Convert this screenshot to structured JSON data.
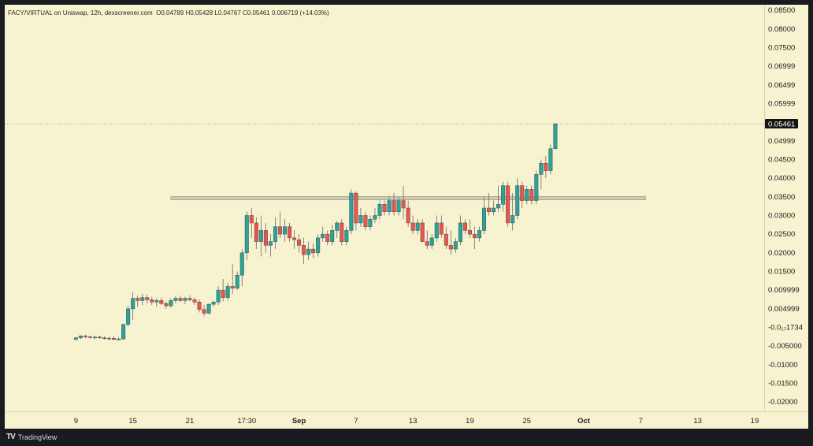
{
  "legend": {
    "pair": "FACY/VIRTUAL on Uniswap, 12h, dexscreener.com",
    "open": "O0.04789",
    "high": "H0.05428",
    "low": "L0.04767",
    "close": "C0.05461",
    "change": "0.006719 (+14.03%)"
  },
  "brand": {
    "logo": "TV",
    "name": "TradingView"
  },
  "colors": {
    "up": "#26a69a",
    "down": "#ef5350",
    "bg": "#f7f2cf",
    "zone": "#c9c6b4"
  },
  "chart_data": {
    "type": "candlestick",
    "title": "FACY/VIRTUAL on Uniswap, 12h, dexscreener.com",
    "y_ticks": [
      "0.08500",
      "0.08000",
      "0.07500",
      "0.06999",
      "0.06499",
      "0.05999",
      "0.04999",
      "0.04500",
      "0.04000",
      "0.03500",
      "0.03000",
      "0.02500",
      "0.02000",
      "0.01500",
      "0.009999",
      "0.004999",
      "-0.0₁₇1734",
      "-0.005000",
      "-0.01000",
      "-0.01500",
      "-0.02000"
    ],
    "y_tick_values": [
      0.085,
      0.08,
      0.075,
      0.06999,
      0.06499,
      0.05999,
      0.04999,
      0.045,
      0.04,
      0.035,
      0.03,
      0.025,
      0.02,
      0.015,
      0.009999,
      0.004999,
      0.0,
      -0.005,
      -0.01,
      -0.015,
      -0.02
    ],
    "ylim": [
      -0.0225,
      0.0865
    ],
    "x_ticks": [
      {
        "label": "9",
        "day": 0
      },
      {
        "label": "15",
        "day": 6
      },
      {
        "label": "21",
        "day": 12
      },
      {
        "label": "17:30",
        "day": 18
      },
      {
        "label": "Sep",
        "day": 23.5
      },
      {
        "label": "7",
        "day": 29.5
      },
      {
        "label": "13",
        "day": 35.5
      },
      {
        "label": "19",
        "day": 41.5
      },
      {
        "label": "25",
        "day": 47.5
      },
      {
        "label": "Oct",
        "day": 53.5
      },
      {
        "label": "7",
        "day": 59.5
      },
      {
        "label": "13",
        "day": 65.5
      },
      {
        "label": "19",
        "day": 71.5
      }
    ],
    "xlim_days": [
      -7.5,
      72.5
    ],
    "last_price": "0.05461",
    "last_price_value": 0.05461,
    "resistance_zone": {
      "from_day": 10,
      "to_day": 60,
      "low": 0.0342,
      "high": 0.0351
    },
    "candles": [
      [
        0.0,
        -0.0032,
        -0.0025,
        -0.0035,
        -0.0028
      ],
      [
        0.5,
        -0.0028,
        -0.0021,
        -0.0032,
        -0.0023
      ],
      [
        1.0,
        -0.0023,
        -0.0019,
        -0.0029,
        -0.0025
      ],
      [
        1.5,
        -0.0025,
        -0.0022,
        -0.003,
        -0.0027
      ],
      [
        2.0,
        -0.0027,
        -0.0023,
        -0.0031,
        -0.0026
      ],
      [
        2.5,
        -0.0026,
        -0.0022,
        -0.0031,
        -0.0028
      ],
      [
        3.0,
        -0.0028,
        -0.0024,
        -0.0033,
        -0.003
      ],
      [
        3.5,
        -0.003,
        -0.0025,
        -0.0034,
        -0.0029
      ],
      [
        4.0,
        -0.0029,
        -0.0024,
        -0.0035,
        -0.0032
      ],
      [
        4.5,
        -0.0032,
        -0.0026,
        -0.0035,
        -0.0031
      ],
      [
        5.0,
        -0.0031,
        0.001,
        -0.0033,
        0.0008
      ],
      [
        5.5,
        0.0008,
        0.0058,
        0.0002,
        0.005
      ],
      [
        6.0,
        0.005,
        0.0095,
        0.002,
        0.0078
      ],
      [
        6.5,
        0.0078,
        0.0085,
        0.0055,
        0.0072
      ],
      [
        7.0,
        0.0072,
        0.009,
        0.006,
        0.008
      ],
      [
        7.5,
        0.008,
        0.0088,
        0.0065,
        0.0074
      ],
      [
        8.0,
        0.0074,
        0.0082,
        0.006,
        0.0068
      ],
      [
        8.5,
        0.0068,
        0.0078,
        0.0055,
        0.0072
      ],
      [
        9.0,
        0.0072,
        0.008,
        0.006,
        0.0064
      ],
      [
        9.5,
        0.0064,
        0.007,
        0.005,
        0.0058
      ],
      [
        10.0,
        0.0058,
        0.0078,
        0.0052,
        0.0072
      ],
      [
        10.5,
        0.0072,
        0.0085,
        0.0065,
        0.0078
      ],
      [
        11.0,
        0.0078,
        0.0085,
        0.0068,
        0.0072
      ],
      [
        11.5,
        0.0072,
        0.0082,
        0.0062,
        0.0078
      ],
      [
        12.0,
        0.0078,
        0.0086,
        0.007,
        0.0074
      ],
      [
        12.5,
        0.0074,
        0.008,
        0.006,
        0.0068
      ],
      [
        13.0,
        0.0068,
        0.0075,
        0.004,
        0.0048
      ],
      [
        13.5,
        0.0048,
        0.006,
        0.003,
        0.0038
      ],
      [
        14.0,
        0.0038,
        0.0065,
        0.0035,
        0.0062
      ],
      [
        14.5,
        0.0062,
        0.0072,
        0.0055,
        0.0068
      ],
      [
        15.0,
        0.0068,
        0.011,
        0.006,
        0.01
      ],
      [
        15.5,
        0.01,
        0.013,
        0.007,
        0.008
      ],
      [
        16.0,
        0.008,
        0.012,
        0.0072,
        0.011
      ],
      [
        16.5,
        0.011,
        0.017,
        0.009,
        0.0105
      ],
      [
        17.0,
        0.0105,
        0.015,
        0.01,
        0.014
      ],
      [
        17.5,
        0.014,
        0.021,
        0.011,
        0.02
      ],
      [
        18.0,
        0.02,
        0.031,
        0.018,
        0.03
      ],
      [
        18.5,
        0.03,
        0.032,
        0.024,
        0.028
      ],
      [
        19.0,
        0.028,
        0.0295,
        0.021,
        0.023
      ],
      [
        19.5,
        0.023,
        0.03,
        0.019,
        0.026
      ],
      [
        20.0,
        0.026,
        0.028,
        0.02,
        0.022
      ],
      [
        20.5,
        0.022,
        0.025,
        0.019,
        0.023
      ],
      [
        21.0,
        0.023,
        0.0295,
        0.021,
        0.027
      ],
      [
        21.5,
        0.027,
        0.031,
        0.024,
        0.025
      ],
      [
        22.0,
        0.025,
        0.029,
        0.023,
        0.027
      ],
      [
        22.5,
        0.027,
        0.028,
        0.023,
        0.024
      ],
      [
        23.0,
        0.024,
        0.026,
        0.021,
        0.0235
      ],
      [
        23.5,
        0.0235,
        0.025,
        0.02,
        0.022
      ],
      [
        24.0,
        0.022,
        0.024,
        0.017,
        0.0195
      ],
      [
        24.5,
        0.0195,
        0.023,
        0.018,
        0.021
      ],
      [
        25.0,
        0.021,
        0.0225,
        0.0185,
        0.02
      ],
      [
        25.5,
        0.02,
        0.025,
        0.019,
        0.024
      ],
      [
        26.0,
        0.024,
        0.027,
        0.023,
        0.025
      ],
      [
        26.5,
        0.025,
        0.026,
        0.022,
        0.023
      ],
      [
        27.0,
        0.023,
        0.0275,
        0.022,
        0.026
      ],
      [
        27.5,
        0.026,
        0.0285,
        0.024,
        0.028
      ],
      [
        28.0,
        0.028,
        0.029,
        0.022,
        0.023
      ],
      [
        28.5,
        0.023,
        0.027,
        0.022,
        0.026
      ],
      [
        29.0,
        0.026,
        0.037,
        0.025,
        0.036
      ],
      [
        29.5,
        0.036,
        0.0365,
        0.026,
        0.028
      ],
      [
        30.0,
        0.028,
        0.032,
        0.027,
        0.03
      ],
      [
        30.5,
        0.03,
        0.031,
        0.026,
        0.027
      ],
      [
        31.0,
        0.027,
        0.03,
        0.026,
        0.029
      ],
      [
        31.5,
        0.029,
        0.032,
        0.028,
        0.03
      ],
      [
        32.0,
        0.03,
        0.034,
        0.029,
        0.033
      ],
      [
        32.5,
        0.033,
        0.034,
        0.03,
        0.031
      ],
      [
        33.0,
        0.031,
        0.035,
        0.03,
        0.034
      ],
      [
        33.5,
        0.034,
        0.036,
        0.03,
        0.031
      ],
      [
        34.0,
        0.031,
        0.035,
        0.03,
        0.034
      ],
      [
        34.5,
        0.034,
        0.038,
        0.029,
        0.032
      ],
      [
        35.0,
        0.032,
        0.034,
        0.027,
        0.028
      ],
      [
        35.5,
        0.028,
        0.03,
        0.025,
        0.026
      ],
      [
        36.0,
        0.026,
        0.029,
        0.025,
        0.028
      ],
      [
        36.5,
        0.028,
        0.029,
        0.023,
        0.023
      ],
      [
        37.0,
        0.023,
        0.026,
        0.021,
        0.022
      ],
      [
        37.5,
        0.022,
        0.025,
        0.021,
        0.024
      ],
      [
        38.0,
        0.024,
        0.03,
        0.023,
        0.028
      ],
      [
        38.5,
        0.028,
        0.03,
        0.024,
        0.025
      ],
      [
        39.0,
        0.025,
        0.027,
        0.021,
        0.022
      ],
      [
        39.5,
        0.022,
        0.026,
        0.0195,
        0.021
      ],
      [
        40.0,
        0.021,
        0.024,
        0.02,
        0.023
      ],
      [
        40.5,
        0.023,
        0.03,
        0.022,
        0.028
      ],
      [
        41.0,
        0.028,
        0.029,
        0.025,
        0.026
      ],
      [
        41.5,
        0.026,
        0.029,
        0.024,
        0.025
      ],
      [
        42.0,
        0.025,
        0.027,
        0.021,
        0.024
      ],
      [
        42.5,
        0.024,
        0.027,
        0.023,
        0.026
      ],
      [
        43.0,
        0.026,
        0.035,
        0.025,
        0.032
      ],
      [
        43.5,
        0.032,
        0.036,
        0.03,
        0.031
      ],
      [
        44.0,
        0.031,
        0.034,
        0.03,
        0.032
      ],
      [
        44.5,
        0.032,
        0.038,
        0.031,
        0.033
      ],
      [
        45.0,
        0.033,
        0.039,
        0.031,
        0.038
      ],
      [
        45.5,
        0.038,
        0.039,
        0.027,
        0.028
      ],
      [
        46.0,
        0.028,
        0.036,
        0.026,
        0.03
      ],
      [
        46.5,
        0.03,
        0.04,
        0.029,
        0.038
      ],
      [
        47.0,
        0.038,
        0.039,
        0.032,
        0.034
      ],
      [
        47.5,
        0.034,
        0.038,
        0.033,
        0.037
      ],
      [
        48.0,
        0.037,
        0.038,
        0.033,
        0.034
      ],
      [
        48.5,
        0.034,
        0.042,
        0.033,
        0.041
      ],
      [
        49.0,
        0.041,
        0.045,
        0.037,
        0.044
      ],
      [
        49.5,
        0.044,
        0.046,
        0.04,
        0.042
      ],
      [
        50.0,
        0.042,
        0.049,
        0.041,
        0.0479
      ],
      [
        50.5,
        0.0479,
        0.0543,
        0.0477,
        0.0546
      ]
    ]
  }
}
